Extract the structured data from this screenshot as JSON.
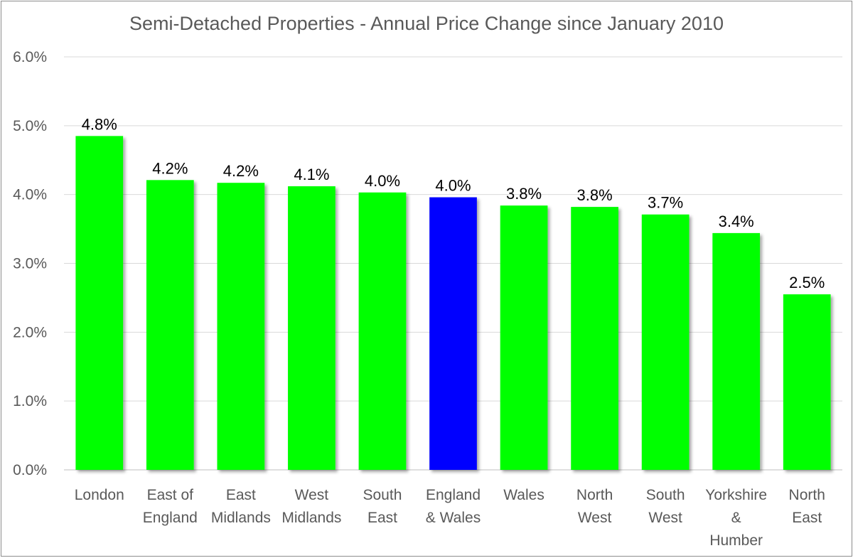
{
  "chart_data": {
    "type": "bar",
    "title": "Semi-Detached Properties - Annual Price Change since January 2010",
    "categories": [
      [
        "London"
      ],
      [
        "East of",
        "England"
      ],
      [
        "East",
        "Midlands"
      ],
      [
        "West",
        "Midlands"
      ],
      [
        "South",
        "East"
      ],
      [
        "England",
        "& Wales"
      ],
      [
        "Wales"
      ],
      [
        "North",
        "West"
      ],
      [
        "South",
        "West"
      ],
      [
        "Yorkshire",
        "&",
        "Humber"
      ],
      [
        "North",
        "East"
      ]
    ],
    "values": [
      4.85,
      4.21,
      4.17,
      4.12,
      4.03,
      3.96,
      3.84,
      3.82,
      3.71,
      3.44,
      2.55
    ],
    "data_labels": [
      "4.8%",
      "4.2%",
      "4.2%",
      "4.1%",
      "4.0%",
      "4.0%",
      "3.8%",
      "3.8%",
      "3.7%",
      "3.4%",
      "2.5%"
    ],
    "bar_colors": [
      "#00ff00",
      "#00ff00",
      "#00ff00",
      "#00ff00",
      "#00ff00",
      "#0000ff",
      "#00ff00",
      "#00ff00",
      "#00ff00",
      "#00ff00",
      "#00ff00"
    ],
    "yticks": [
      "0.0%",
      "1.0%",
      "2.0%",
      "3.0%",
      "4.0%",
      "5.0%",
      "6.0%"
    ],
    "ylim": [
      0,
      6
    ],
    "xlabel": "",
    "ylabel": "",
    "grid": true,
    "legend": "none"
  }
}
